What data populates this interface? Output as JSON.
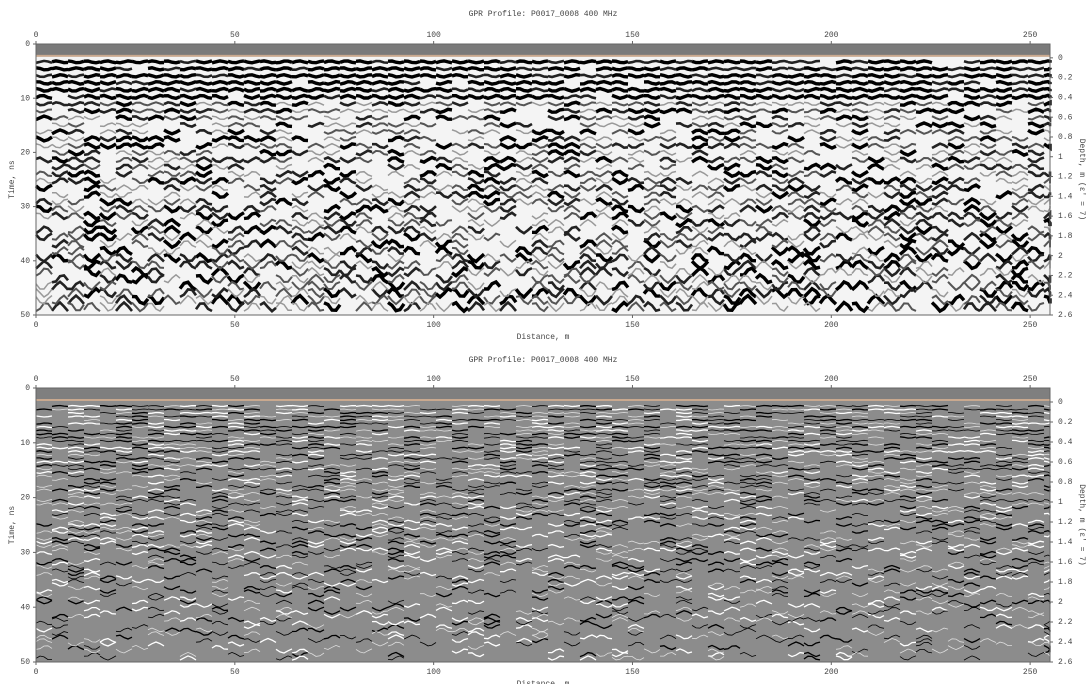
{
  "chart_data": [
    {
      "type": "radargram",
      "title": "GPR Profile: P0017_0008 400 MHz",
      "xlabel": "Distance, m",
      "ylabel": "Time, ns",
      "y2label": "Depth, m (ε' = 7)",
      "xlim": [
        0,
        255
      ],
      "xticks": [
        0,
        50,
        100,
        150,
        200,
        250
      ],
      "ylim": [
        0,
        50
      ],
      "yticks": [
        0,
        10,
        20,
        30,
        40,
        50
      ],
      "y2lim": [
        -0.14,
        2.6
      ],
      "y2ticks": [
        0,
        0.2,
        0.4,
        0.6,
        0.8,
        1,
        1.2,
        1.4,
        1.6,
        1.8,
        2,
        2.2,
        2.4,
        2.6
      ]
    },
    {
      "type": "radargram",
      "title": "GPR Profile: P0017_0008 400 MHz",
      "xlabel": "Distance, m",
      "ylabel": "Time, ns",
      "y2label": "Depth, m (ε' = 7)",
      "xlim": [
        0,
        255
      ],
      "xticks": [
        0,
        50,
        100,
        150,
        200,
        250
      ],
      "ylim": [
        0,
        50
      ],
      "yticks": [
        0,
        10,
        20,
        30,
        40,
        50
      ],
      "y2lim": [
        -0.14,
        2.6
      ],
      "y2ticks": [
        0,
        0.2,
        0.4,
        0.6,
        0.8,
        1,
        1.2,
        1.4,
        1.6,
        1.8,
        2,
        2.2,
        2.4,
        2.6
      ]
    }
  ]
}
